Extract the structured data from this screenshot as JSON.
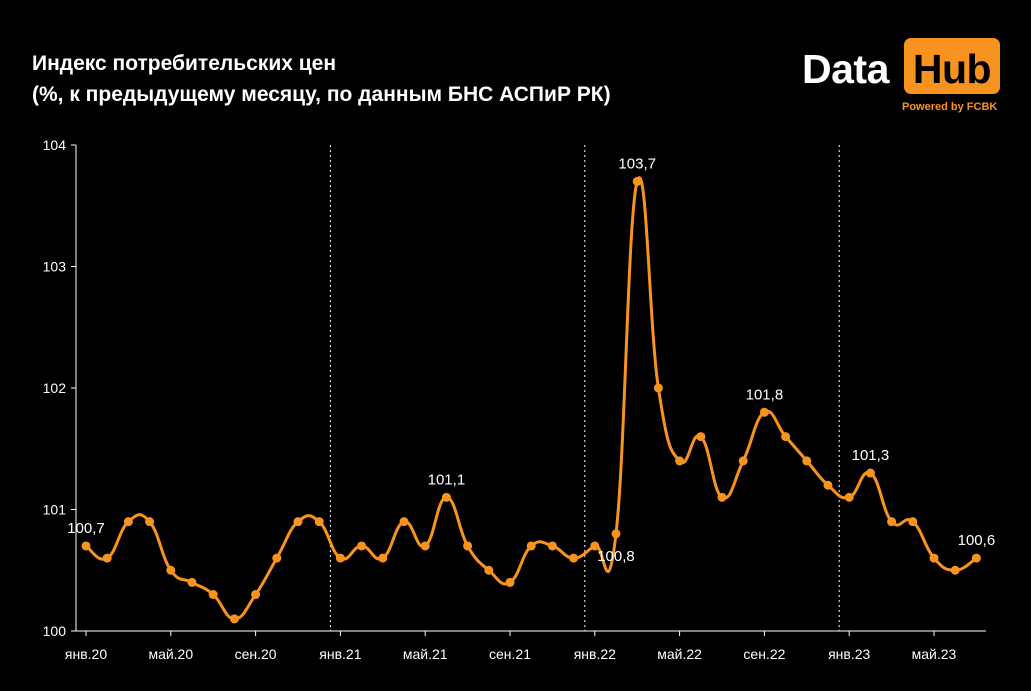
{
  "header": {
    "title_line1": "Индекс потребительских цен",
    "title_line2": "(%, к предыдущему месяцу, по данным БНС АСПиР РК)"
  },
  "logo": {
    "data_text": "Data",
    "hub_text": "Hub",
    "powered_text": "Powered by FCBK"
  },
  "colors": {
    "background": "#000000",
    "line": "#f7931e",
    "text": "#ffffff",
    "accent": "#f7931e"
  },
  "chart_data": {
    "type": "line",
    "title": "Индекс потребительских цен (%, к предыдущему месяцу, по данным БНС АСПиР РК)",
    "xlabel": "",
    "ylabel": "",
    "ylim": [
      100,
      104
    ],
    "yticks": [
      "100",
      "101",
      "102",
      "103",
      "104"
    ],
    "xticks": [
      {
        "label": "янв.20",
        "index": 0
      },
      {
        "label": "май.20",
        "index": 4
      },
      {
        "label": "сен.20",
        "index": 8
      },
      {
        "label": "янв.21",
        "index": 12
      },
      {
        "label": "май.21",
        "index": 16
      },
      {
        "label": "сен.21",
        "index": 20
      },
      {
        "label": "янв.22",
        "index": 24
      },
      {
        "label": "май.22",
        "index": 28
      },
      {
        "label": "сен.22",
        "index": 32
      },
      {
        "label": "янв.23",
        "index": 36
      },
      {
        "label": "май.23",
        "index": 40
      }
    ],
    "year_separators": [
      12,
      24,
      36
    ],
    "grid": false,
    "legend": "none",
    "series": [
      {
        "values": [
          100.7,
          100.6,
          100.9,
          100.9,
          100.5,
          100.4,
          100.3,
          100.1,
          100.3,
          100.6,
          100.9,
          100.9,
          100.6,
          100.7,
          100.6,
          100.9,
          100.7,
          101.1,
          100.7,
          100.5,
          100.4,
          100.7,
          100.7,
          100.6,
          100.7,
          100.8,
          103.7,
          102.0,
          101.4,
          101.6,
          101.1,
          101.4,
          101.8,
          101.6,
          101.4,
          101.2,
          101.1,
          101.3,
          100.9,
          100.9,
          100.6,
          100.5,
          100.6
        ]
      }
    ],
    "data_labels": [
      {
        "index": 0,
        "text": "100,7",
        "pos": "above"
      },
      {
        "index": 17,
        "text": "101,1",
        "pos": "above"
      },
      {
        "index": 25,
        "text": "100,8",
        "pos": "below"
      },
      {
        "index": 26,
        "text": "103,7",
        "pos": "above"
      },
      {
        "index": 32,
        "text": "101,8",
        "pos": "above"
      },
      {
        "index": 37,
        "text": "101,3",
        "pos": "above"
      },
      {
        "index": 42,
        "text": "100,6",
        "pos": "above"
      }
    ]
  }
}
